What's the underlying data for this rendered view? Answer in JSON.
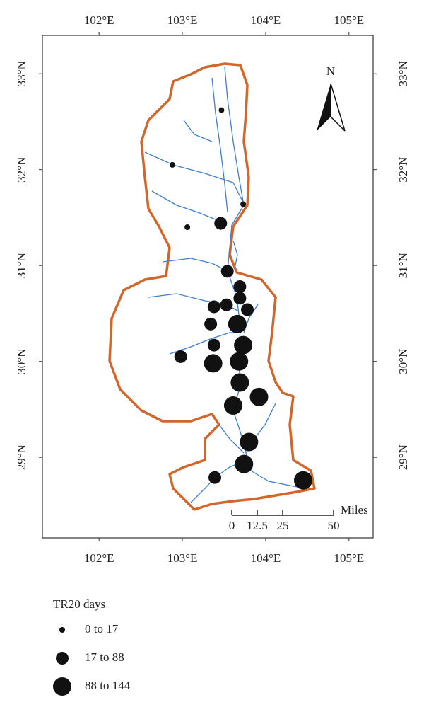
{
  "map": {
    "xlim": [
      101.32,
      105.29
    ],
    "ylim": [
      28.16,
      33.4
    ],
    "xticks": [
      {
        "value": 102,
        "label": "102°E"
      },
      {
        "value": 103,
        "label": "103°E"
      },
      {
        "value": 104,
        "label": "104°E"
      },
      {
        "value": 105,
        "label": "105°E"
      }
    ],
    "yticks": [
      {
        "value": 29,
        "label": "29°N"
      },
      {
        "value": 30,
        "label": "30°N"
      },
      {
        "value": 31,
        "label": "31°N"
      },
      {
        "value": 32,
        "label": "32°N"
      },
      {
        "value": 33,
        "label": "33°N"
      }
    ],
    "north": "N",
    "scale_bar": {
      "unit": "Miles",
      "ticks": [
        0,
        12.5,
        25,
        50
      ]
    },
    "legend": {
      "title": "TR20 days",
      "classes": [
        {
          "label": "0 to 17",
          "points": [
            [
              103.47,
              32.62
            ],
            [
              102.88,
              32.05
            ],
            [
              103.73,
              31.64
            ],
            [
              103.06,
              31.4
            ]
          ]
        },
        {
          "label": "17 to 88",
          "points": [
            [
              103.46,
              31.44
            ],
            [
              103.54,
              30.94
            ],
            [
              103.69,
              30.78
            ],
            [
              103.69,
              30.66
            ],
            [
              103.38,
              30.57
            ],
            [
              103.53,
              30.59
            ],
            [
              103.78,
              30.54
            ],
            [
              103.34,
              30.39
            ],
            [
              103.38,
              30.17
            ],
            [
              102.98,
              30.05
            ],
            [
              103.39,
              28.79
            ]
          ]
        },
        {
          "label": "88 to 144",
          "points": [
            [
              103.66,
              30.39
            ],
            [
              103.73,
              30.17
            ],
            [
              103.37,
              29.98
            ],
            [
              103.68,
              30.0
            ],
            [
              103.69,
              29.78
            ],
            [
              103.61,
              29.54
            ],
            [
              103.92,
              29.63
            ],
            [
              103.8,
              29.16
            ],
            [
              103.74,
              28.93
            ],
            [
              104.45,
              28.76
            ]
          ]
        }
      ]
    }
  }
}
